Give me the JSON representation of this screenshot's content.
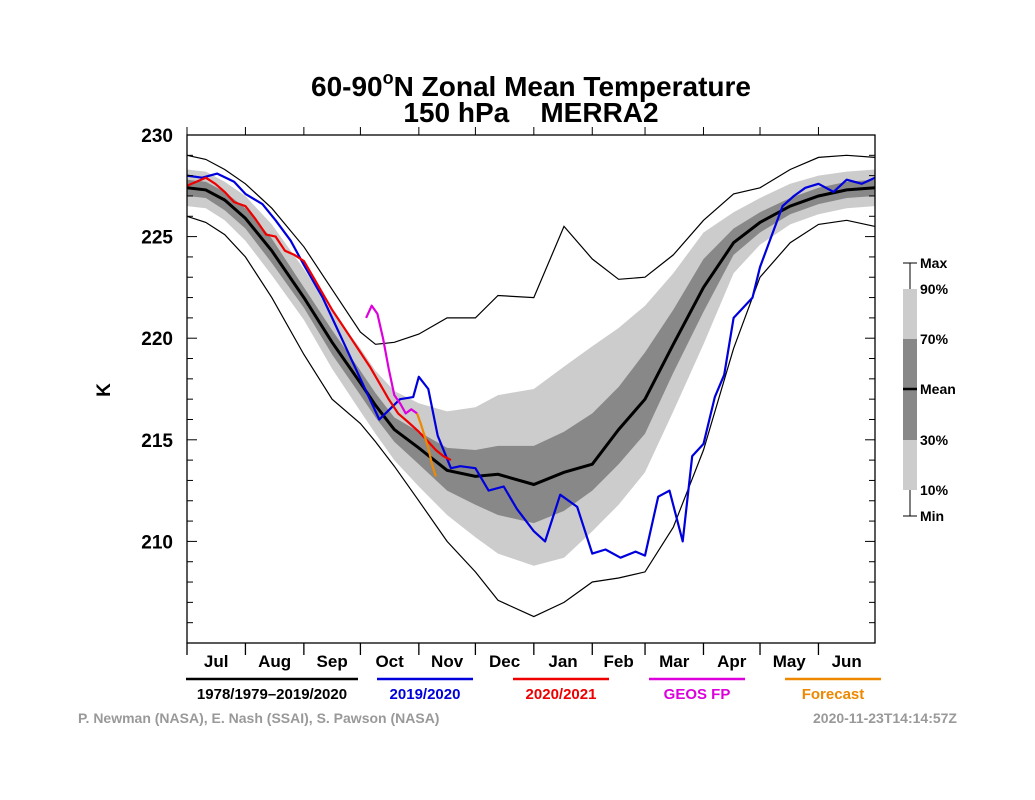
{
  "chart_data": {
    "type": "line",
    "title_line1": "60-90",
    "title_sup": "o",
    "title_line1b": "N Zonal Mean Temperature",
    "title_line2": "150 hPa    MERRA2",
    "ylabel": "K",
    "ylim": [
      205,
      230
    ],
    "yticks": [
      210,
      215,
      220,
      225,
      230
    ],
    "ytick_labels": [
      "210",
      "215",
      "220",
      "225",
      "230"
    ],
    "xlim": [
      0,
      365
    ],
    "months": [
      "Jul",
      "Aug",
      "Sep",
      "Oct",
      "Nov",
      "Dec",
      "Jan",
      "Feb",
      "Mar",
      "Apr",
      "May",
      "Jun"
    ],
    "month_starts": [
      0,
      31,
      62,
      92,
      123,
      153,
      184,
      215,
      243,
      274,
      304,
      335
    ],
    "climatology": {
      "x": [
        0,
        10,
        20,
        31,
        45,
        62,
        77,
        92,
        100,
        110,
        123,
        138,
        153,
        165,
        184,
        200,
        215,
        229,
        243,
        258,
        274,
        290,
        304,
        320,
        335,
        350,
        365
      ],
      "mean": [
        227.4,
        227.3,
        226.8,
        225.9,
        224.3,
        222.0,
        219.8,
        217.8,
        216.7,
        215.5,
        214.6,
        213.5,
        213.2,
        213.3,
        212.8,
        213.4,
        213.8,
        215.5,
        217.0,
        219.7,
        222.5,
        224.7,
        225.7,
        226.5,
        227.0,
        227.3,
        227.4
      ],
      "p30": [
        227.0,
        226.9,
        226.3,
        225.4,
        223.7,
        221.5,
        219.2,
        217.2,
        216.1,
        214.9,
        213.8,
        212.5,
        211.8,
        211.3,
        210.9,
        211.5,
        212.5,
        213.8,
        215.3,
        218.3,
        221.3,
        224.1,
        225.2,
        226.1,
        226.6,
        226.9,
        227.0
      ],
      "p70": [
        227.8,
        227.7,
        227.2,
        226.4,
        224.9,
        222.5,
        220.4,
        218.4,
        217.3,
        216.1,
        215.4,
        214.6,
        214.5,
        214.7,
        214.7,
        215.4,
        216.3,
        217.6,
        219.3,
        221.4,
        223.9,
        225.4,
        226.2,
        226.9,
        227.4,
        227.7,
        227.8
      ],
      "p10": [
        226.5,
        226.4,
        225.8,
        224.8,
        223.1,
        220.9,
        218.5,
        216.4,
        215.3,
        214.0,
        212.7,
        211.3,
        210.2,
        209.4,
        208.8,
        209.2,
        210.5,
        211.8,
        213.4,
        216.4,
        219.7,
        223.2,
        224.6,
        225.6,
        226.1,
        226.4,
        226.5
      ],
      "p90": [
        228.3,
        228.2,
        227.7,
        227.0,
        225.6,
        223.4,
        221.3,
        219.5,
        218.4,
        217.4,
        216.8,
        216.4,
        216.6,
        217.2,
        217.5,
        218.6,
        219.6,
        220.5,
        221.6,
        223.2,
        225.2,
        226.2,
        226.9,
        227.6,
        228.0,
        228.2,
        228.3
      ],
      "min": [
        226.0,
        225.7,
        225.1,
        224.0,
        222.0,
        219.2,
        217.0,
        215.8,
        214.9,
        213.7,
        212.0,
        210.0,
        208.5,
        207.1,
        206.3,
        207.0,
        208.0,
        208.2,
        208.5,
        210.7,
        214.5,
        219.5,
        223.0,
        224.7,
        225.6,
        225.8,
        225.5
      ],
      "max": [
        229.0,
        228.8,
        228.3,
        227.6,
        226.4,
        224.5,
        222.4,
        220.3,
        219.7,
        219.8,
        220.2,
        221.0,
        221.0,
        222.1,
        222.0,
        225.5,
        223.9,
        222.9,
        223.0,
        224.1,
        225.8,
        227.1,
        227.4,
        228.3,
        228.9,
        229.0,
        228.9
      ]
    },
    "series": [
      {
        "name": "1978/1979–2019/2020",
        "color": "#000000",
        "role": "mean"
      },
      {
        "name": "2019/2020",
        "color": "#0000dd",
        "x": [
          0,
          8,
          16,
          25,
          31,
          40,
          47,
          55,
          62,
          72,
          82,
          92,
          102,
          113,
          120,
          123,
          128,
          133,
          140,
          145,
          153,
          160,
          168,
          175,
          184,
          190,
          198,
          207,
          215,
          222,
          230,
          238,
          243,
          250,
          256,
          263,
          268,
          274,
          280,
          285,
          290,
          295,
          300,
          304,
          310,
          316,
          322,
          328,
          335,
          343,
          350,
          358,
          365
        ],
        "y": [
          228.0,
          227.9,
          228.1,
          227.7,
          227.1,
          226.6,
          225.8,
          224.8,
          223.6,
          222.0,
          220.0,
          218.0,
          216.0,
          217.0,
          217.1,
          218.1,
          217.5,
          215.2,
          213.6,
          213.7,
          213.6,
          212.5,
          212.7,
          211.6,
          210.5,
          210.0,
          212.3,
          211.7,
          209.4,
          209.6,
          209.2,
          209.5,
          209.3,
          212.2,
          212.5,
          210.0,
          214.2,
          214.8,
          217.1,
          218.2,
          221.0,
          221.5,
          222.0,
          223.5,
          225.0,
          226.5,
          227.0,
          227.4,
          227.6,
          227.2,
          227.8,
          227.6,
          227.9
        ]
      },
      {
        "name": "2020/2021",
        "color": "#ee0000",
        "x": [
          0,
          5,
          10,
          15,
          20,
          25,
          31,
          36,
          42,
          47,
          52,
          57,
          62,
          67,
          72,
          77,
          82,
          87,
          92,
          97,
          102,
          107,
          112,
          117,
          123,
          128,
          132,
          136,
          140
        ],
        "y": [
          227.5,
          227.7,
          227.9,
          227.6,
          227.2,
          226.7,
          226.5,
          225.9,
          225.1,
          225.0,
          224.3,
          224.1,
          223.8,
          223.0,
          222.2,
          221.4,
          220.7,
          220.0,
          219.3,
          218.6,
          217.8,
          217.0,
          216.3,
          215.9,
          215.4,
          214.9,
          214.5,
          214.2,
          214.0
        ]
      },
      {
        "name": "GEOS FP",
        "color": "#dd00dd",
        "x": [
          95,
          98,
          101,
          104,
          107,
          110,
          113,
          116,
          119,
          122
        ],
        "y": [
          221.0,
          221.6,
          221.2,
          220.0,
          218.5,
          217.2,
          216.8,
          216.3,
          216.5,
          216.3
        ]
      },
      {
        "name": "Forecast",
        "color": "#ee8800",
        "x": [
          122,
          124,
          126,
          128,
          130,
          132
        ],
        "y": [
          216.3,
          215.8,
          215.2,
          214.6,
          213.8,
          213.2
        ]
      }
    ],
    "key_labels": [
      "Max",
      "90%",
      "70%",
      "Mean",
      "30%",
      "10%",
      "Min"
    ],
    "band_colors": {
      "outer": "#cccccc",
      "inner": "#888888"
    }
  },
  "credit_left": "P. Newman (NASA), E. Nash (SSAI), S. Pawson (NASA)",
  "credit_right": "2020-11-23T14:14:57Z"
}
